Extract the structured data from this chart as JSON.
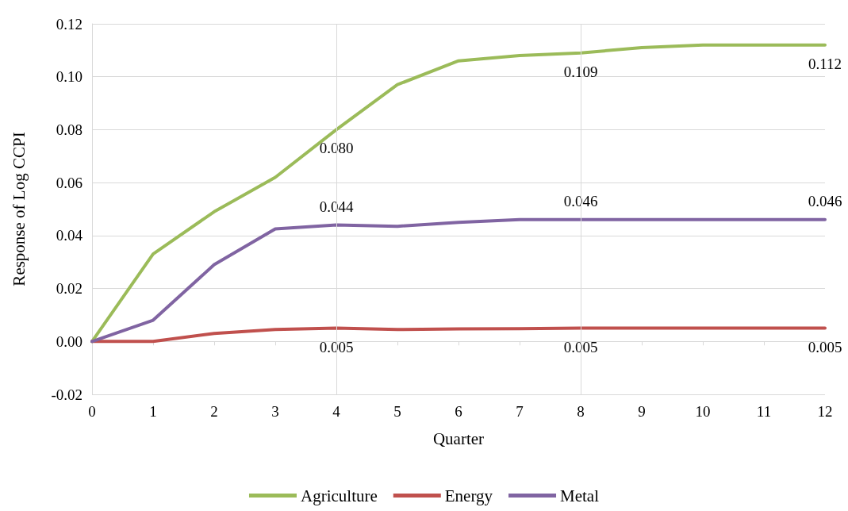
{
  "chart_data": {
    "type": "line",
    "xlabel": "Quarter",
    "ylabel": "Response of Log CCPI",
    "x": [
      0,
      1,
      2,
      3,
      4,
      5,
      6,
      7,
      8,
      9,
      10,
      11,
      12
    ],
    "series": [
      {
        "name": "Agriculture",
        "color": "#9bbb59",
        "values": [
          0,
          0.033,
          0.049,
          0.062,
          0.08,
          0.097,
          0.106,
          0.108,
          0.109,
          0.111,
          0.112,
          0.112,
          0.112
        ],
        "value_labels": [
          null,
          null,
          null,
          null,
          "0.080",
          null,
          null,
          null,
          "0.109",
          null,
          null,
          null,
          "0.112"
        ]
      },
      {
        "name": "Energy",
        "color": "#c0504d",
        "values": [
          0,
          0,
          0.003,
          0.0045,
          0.005,
          0.0045,
          0.0047,
          0.0048,
          0.005,
          0.005,
          0.005,
          0.005,
          0.005
        ],
        "value_labels": [
          null,
          null,
          null,
          null,
          "0.005",
          null,
          null,
          null,
          "0.005",
          null,
          null,
          null,
          "0.005"
        ]
      },
      {
        "name": "Metal",
        "color": "#8064a2",
        "values": [
          0,
          0.008,
          0.029,
          0.0425,
          0.044,
          0.0435,
          0.045,
          0.046,
          0.046,
          0.046,
          0.046,
          0.046,
          0.046
        ],
        "value_labels": [
          null,
          null,
          null,
          null,
          "0.044",
          null,
          null,
          null,
          "0.046",
          null,
          null,
          null,
          "0.046"
        ]
      }
    ],
    "xlim": [
      0,
      12
    ],
    "xticks": [
      0,
      1,
      2,
      3,
      4,
      5,
      6,
      7,
      8,
      9,
      10,
      11,
      12
    ],
    "ylim": [
      -0.02,
      0.12
    ],
    "yticks": [
      {
        "value": -0.02,
        "label": "-0.02"
      },
      {
        "value": 0,
        "label": "0.00"
      },
      {
        "value": 0.02,
        "label": "0.02"
      },
      {
        "value": 0.04,
        "label": "0.04"
      },
      {
        "value": 0.06,
        "label": "0.06"
      },
      {
        "value": 0.08,
        "label": "0.08"
      },
      {
        "value": 0.1,
        "label": "0.10"
      },
      {
        "value": 0.12,
        "label": "0.12"
      }
    ],
    "ref_lines": [
      {
        "axis": "x",
        "value": 4,
        "color": "#d9d9d9"
      },
      {
        "axis": "x",
        "value": 8,
        "color": "#d9d9d9"
      }
    ],
    "grid": "y",
    "legend": "bottom",
    "marker": "none",
    "line_style": "solid"
  }
}
